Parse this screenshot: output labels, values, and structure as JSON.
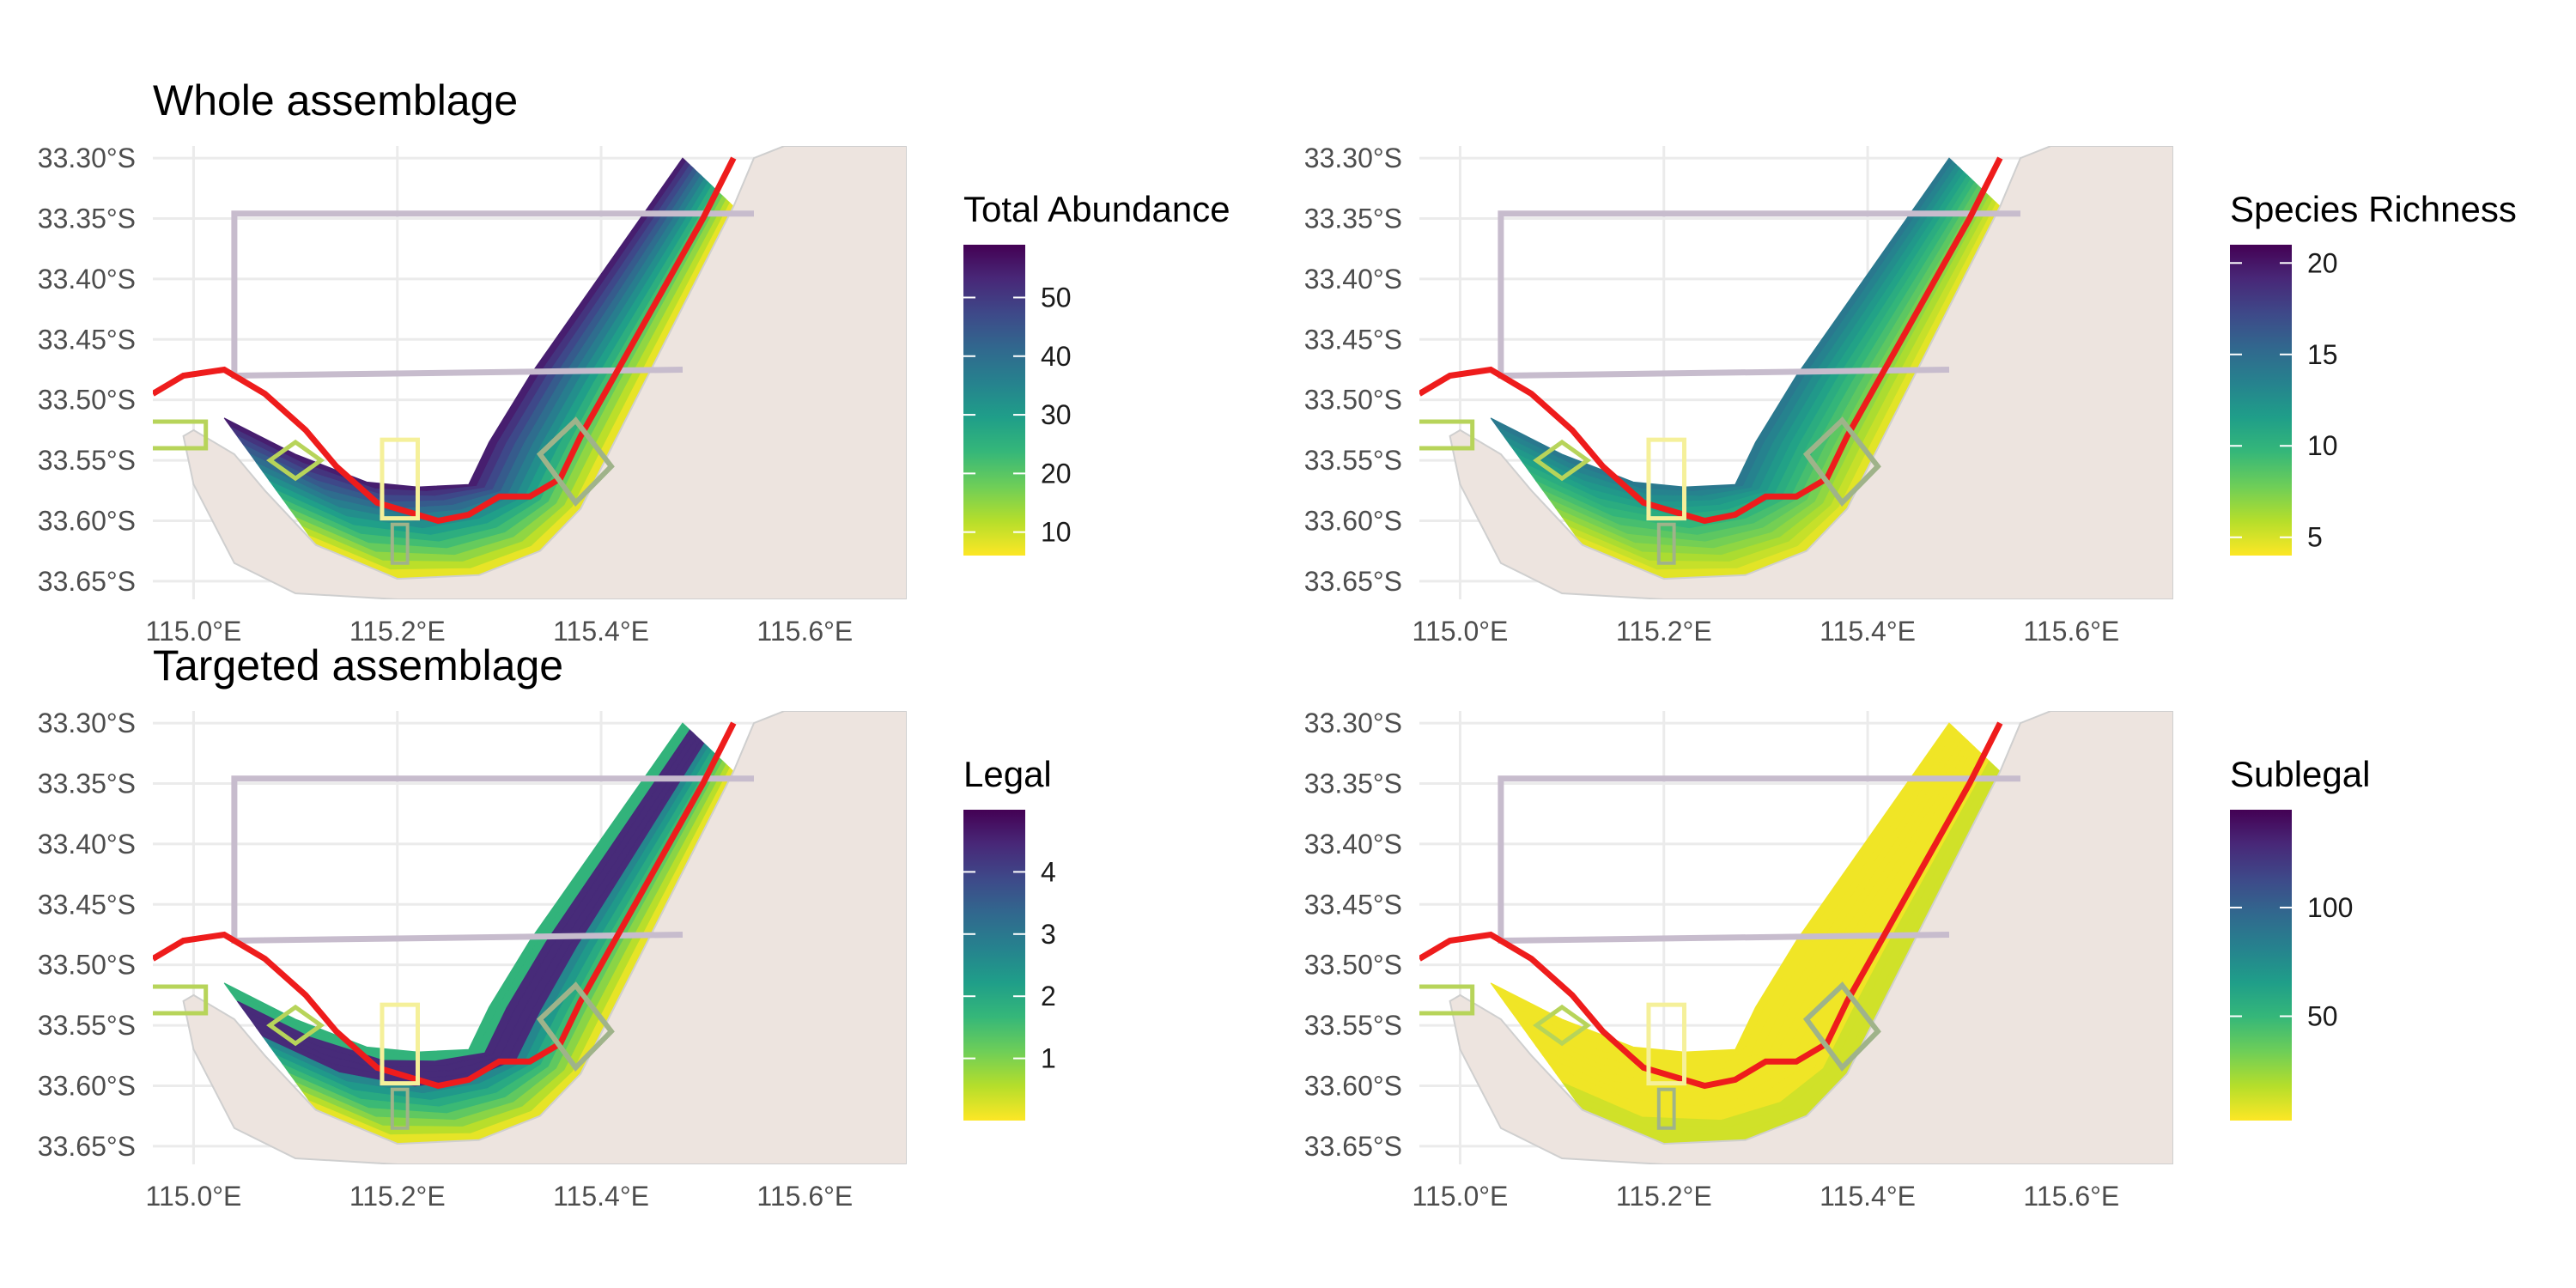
{
  "titles": {
    "whole": "Whole assemblage",
    "targeted": "Targeted assemblage"
  },
  "axes": {
    "lat_labels": [
      "33.30°S",
      "33.35°S",
      "33.40°S",
      "33.45°S",
      "33.50°S",
      "33.55°S",
      "33.60°S",
      "33.65°S"
    ],
    "lon_labels": [
      "115.0°E",
      "115.2°E",
      "115.4°E",
      "115.6°E"
    ],
    "lat_range": [
      -33.665,
      -33.29
    ],
    "lon_range": [
      114.96,
      115.7
    ]
  },
  "colors": {
    "land": "#ede4df",
    "grid": "#ebebeb",
    "boundary_red": "#ee1c1c",
    "sanctuary_purple": "#c7bccd",
    "zone_green": "#b7d45a",
    "zone_yellow": "#f5f09a",
    "zone_grey_green": "#9fb38a",
    "viridis": [
      "#fde725",
      "#b5de2b",
      "#6ece58",
      "#35b779",
      "#1f9e89",
      "#26828e",
      "#31688e",
      "#3e4989",
      "#482878",
      "#440154"
    ]
  },
  "panels": [
    {
      "id": "total-abundance",
      "legend_title": "Total Abundance",
      "legend_ticks": [
        "10",
        "20",
        "30",
        "40",
        "50"
      ],
      "legend_tick_values": [
        10,
        20,
        30,
        40,
        50
      ],
      "legend_range": [
        6,
        59
      ],
      "pattern": "offshore-high"
    },
    {
      "id": "species-richness",
      "legend_title": "Species Richness",
      "legend_ticks": [
        "5",
        "10",
        "15",
        "20"
      ],
      "legend_tick_values": [
        5,
        10,
        15,
        20
      ],
      "legend_range": [
        4,
        21
      ],
      "pattern": "mid-high"
    },
    {
      "id": "legal",
      "legend_title": "Legal",
      "legend_ticks": [
        "1",
        "2",
        "3",
        "4"
      ],
      "legend_tick_values": [
        1,
        2,
        3,
        4
      ],
      "legend_range": [
        0,
        5
      ],
      "pattern": "offshore-band"
    },
    {
      "id": "sublegal",
      "legend_title": "Sublegal",
      "legend_ticks": [
        "50",
        "100"
      ],
      "legend_tick_values": [
        50,
        100
      ],
      "legend_range": [
        2,
        145
      ],
      "pattern": "low"
    }
  ]
}
